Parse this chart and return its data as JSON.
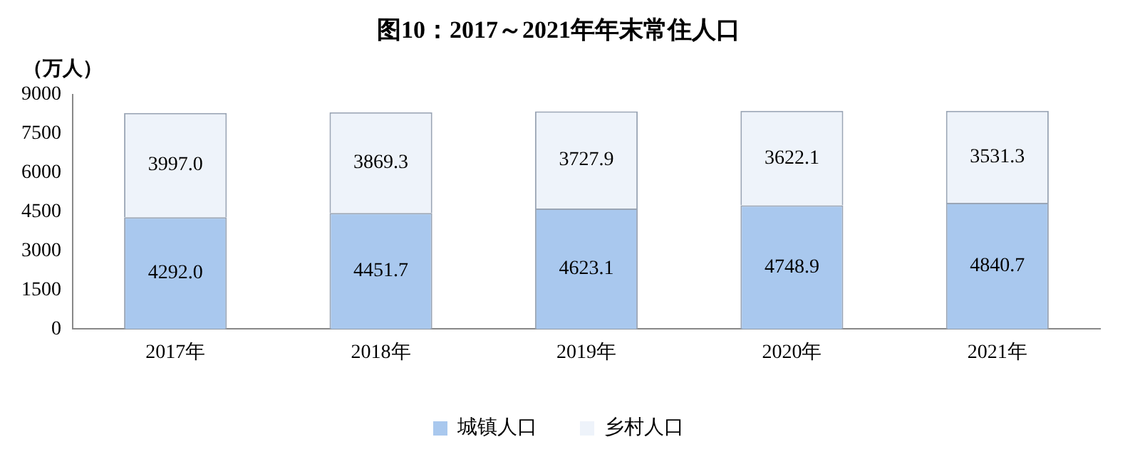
{
  "chart_data": {
    "type": "bar",
    "title": "图10：2017～2021年年末常住人口",
    "ylabel": "（万人）",
    "stacked": true,
    "categories": [
      "2017年",
      "2018年",
      "2019年",
      "2020年",
      "2021年"
    ],
    "series": [
      {
        "name": "城镇人口",
        "color": "#a9c8ee",
        "values": [
          4292.0,
          4451.7,
          4623.1,
          4748.9,
          4840.7
        ],
        "value_labels": [
          "4292.0",
          "4451.7",
          "4623.1",
          "4748.9",
          "4840.7"
        ]
      },
      {
        "name": "乡村人口",
        "color": "#eef3fa",
        "values": [
          3997.0,
          3869.3,
          3727.9,
          3622.1,
          3531.3
        ],
        "value_labels": [
          "3997.0",
          "3869.3",
          "3727.9",
          "3622.1",
          "3531.3"
        ]
      }
    ],
    "ylim": [
      0,
      9000
    ],
    "yticks": [
      0,
      1500,
      3000,
      4500,
      6000,
      7500,
      9000
    ],
    "grid": false,
    "legend": "bottom"
  }
}
